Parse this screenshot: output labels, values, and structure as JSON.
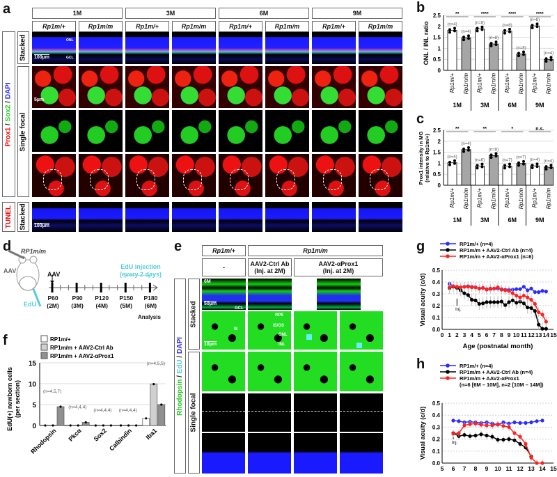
{
  "panels": {
    "a": "a",
    "b": "b",
    "c": "c",
    "d": "d",
    "e": "e",
    "f": "f",
    "g": "g",
    "h": "h"
  },
  "panel_a": {
    "ages": [
      "1M",
      "3M",
      "6M",
      "9M"
    ],
    "genotypes": [
      "Rp1m/+",
      "Rp1m/m"
    ],
    "stain_label": {
      "red": "Prox1",
      "sep1": " / ",
      "green": "Sox2",
      "sep2": " / ",
      "blue": "DAPI"
    },
    "row_labels": {
      "stacked": "Stacked",
      "single_focal": "Single focal",
      "tunel_stacked": "Stacked"
    },
    "tunel_label": "TUNEL",
    "scale_bars": {
      "stacked": "100µm",
      "focal": "5µm",
      "tunel": "100µm"
    },
    "layer_labels": {
      "onl": "ONL",
      "gcl": "GCL"
    }
  },
  "panel_d": {
    "mouse_label": "RP1m/m",
    "aav": "AAV",
    "edu": "EdU",
    "timeline_aav": "AAV",
    "edu_injection": "EdU injection\n(every 2 days)",
    "timepoints": [
      {
        "p": "P60",
        "m": "(2M)"
      },
      {
        "p": "P90",
        "m": "(3M)"
      },
      {
        "p": "P120",
        "m": "(4M)"
      },
      {
        "p": "P150",
        "m": "(5M)"
      },
      {
        "p": "P180",
        "m": "(6M)"
      }
    ],
    "analysis": "Analysis"
  },
  "panel_e": {
    "genotype_headers": [
      "Rp1m/+",
      "Rp1m/m"
    ],
    "treatment_headers": [
      "-",
      "AAV2-Ctrl Ab\n(Inj. at 2M)",
      "AAV2-αProx1\n(Inj. at 2M)"
    ],
    "stain_label": {
      "green": "Rhodopsin",
      "sep1": " / ",
      "cyan": "EdU",
      "sep2": " / ",
      "blue": "DAPI"
    },
    "row_labels": {
      "stacked": "Stacked",
      "single_focal": "Single focal"
    },
    "age_tag": "6M",
    "scale_bars": {
      "stacked": "50µm",
      "focal": "10µm"
    },
    "layer_labels": [
      "RPE",
      "IS/OS",
      "ONL",
      "INL",
      "IS",
      "GCL"
    ]
  },
  "colors": {
    "blue": "#2a2aff",
    "black": "#000000",
    "red": "#ff2020",
    "edu": "#66e0f0",
    "bar_open": "#ffffff",
    "bar_gray": "#a6a6a6",
    "bar_light": "#d0d0d0",
    "bar_dark": "#909090"
  },
  "chart_data": [
    {
      "id": "b",
      "type": "bar",
      "ylabel": "ONL / INL ratio",
      "ylim": [
        0,
        2.5
      ],
      "yticks": [
        "0",
        "0.5",
        "1",
        "1.5",
        "2",
        "2.5"
      ],
      "groups": [
        "1M",
        "3M",
        "6M",
        "9M"
      ],
      "bar_labels": [
        "Rp1m/+",
        "Rp1m/m"
      ],
      "values": [
        [
          1.82,
          1.48
        ],
        [
          1.88,
          1.2
        ],
        [
          1.78,
          0.75
        ],
        [
          2.02,
          0.5
        ]
      ],
      "n": [
        [
          "(n=4)",
          "(n=4)"
        ],
        [
          "(n=8)",
          "(n=8)"
        ],
        [
          "(n=8)",
          "(n=8)"
        ],
        [
          "(n=8)",
          "(n=4)"
        ]
      ],
      "significance": [
        "**",
        "****",
        "****",
        "****"
      ]
    },
    {
      "id": "c",
      "type": "bar",
      "ylabel": "Prox1 intensity in MG",
      "ylabel2": "(relative to Rp1m/+)",
      "ylim": [
        0,
        2.5
      ],
      "yticks": [
        "0",
        "0.5",
        "1",
        "1.5",
        "2",
        "2.5"
      ],
      "groups": [
        "1M",
        "3M",
        "6M",
        "9M"
      ],
      "bar_labels": [
        "Rp1m/+",
        "Rp1m/m"
      ],
      "values": [
        [
          1.02,
          1.62
        ],
        [
          0.87,
          1.35
        ],
        [
          0.87,
          0.99
        ],
        [
          0.88,
          0.82
        ]
      ],
      "n": [
        [
          "(n=4)",
          "(n=4)"
        ],
        [
          "(n=6)",
          "(n=8)"
        ],
        [
          "(n=7)",
          "(n=7)"
        ],
        [
          "(n=4)",
          "(n=4)"
        ]
      ],
      "significance": [
        "**",
        "**",
        "*",
        "n.s."
      ]
    },
    {
      "id": "f",
      "type": "bar",
      "ylabel": "EdU(+) newborn cells",
      "ylabel2": "(per section)",
      "ylim": [
        0,
        15
      ],
      "yticks": [
        "0",
        "5",
        "10",
        "15"
      ],
      "categories": [
        "Rhodopsin",
        "Pkcα",
        "Sox2",
        "Calbindin",
        "Iba1"
      ],
      "legend": [
        "RP1m/+",
        "RP1m/m + AAV2-Ctrl Ab",
        "RP1m/m + AAV2-αProx1"
      ],
      "series": [
        {
          "name": "RP1m/+",
          "values": [
            0,
            0,
            0,
            0,
            1.7
          ]
        },
        {
          "name": "RP1m/m + AAV2-Ctrl Ab",
          "values": [
            0,
            0,
            0,
            0,
            9.9
          ]
        },
        {
          "name": "RP1m/m + AAV2-αProx1",
          "values": [
            4.5,
            0.75,
            0,
            0,
            5.0
          ]
        }
      ],
      "n": [
        "(n=4,5,7)",
        "(n=4,4,4)",
        "(n=4,4,4)",
        "(n=4,4,4)",
        "(n=4,5,5)"
      ]
    },
    {
      "id": "g",
      "type": "line",
      "ylabel": "Visual acuity (c/d)",
      "xlabel": "Age (postnatal month)",
      "xlim": [
        0,
        15
      ],
      "ylim": [
        0,
        0.5
      ],
      "xticks": [
        "0",
        "1",
        "2",
        "3",
        "4",
        "5",
        "6",
        "7",
        "8",
        "9",
        "10",
        "11",
        "12",
        "13",
        "14",
        "15"
      ],
      "yticks": [
        "0.0",
        "0.1",
        "0.2",
        "0.3",
        "0.4",
        "0.5"
      ],
      "annotation": "Inj.",
      "annotation_x": 2,
      "x": [
        1,
        1.5,
        2,
        2.5,
        3,
        3.5,
        4,
        4.5,
        5,
        5.5,
        6,
        6.5,
        7,
        7.5,
        8,
        8.5,
        9,
        9.5,
        10,
        10.5,
        11,
        11.5,
        12,
        12.5,
        13,
        13.5,
        14
      ],
      "series": [
        {
          "name": "RP1m/+ (n=4)",
          "color": "blue",
          "values": [
            0.385,
            0.365,
            0.36,
            0.355,
            0.36,
            0.365,
            0.36,
            0.355,
            0.345,
            0.35,
            0.34,
            0.34,
            0.345,
            0.345,
            0.34,
            0.335,
            0.335,
            0.335,
            0.34,
            0.34,
            0.36,
            0.33,
            0.345,
            0.315,
            0.315,
            0.325,
            0.32
          ],
          "err": 0.02
        },
        {
          "name": "RP1m/m + AAV2-Ctrl Ab (n=4)",
          "color": "black",
          "values": [
            0.35,
            0.36,
            0.35,
            0.33,
            0.305,
            0.29,
            0.25,
            0.245,
            0.215,
            0.22,
            0.23,
            0.23,
            0.23,
            0.23,
            0.235,
            0.205,
            0.23,
            0.245,
            0.225,
            0.235,
            0.22,
            0.185,
            0.18,
            0.155,
            0.04,
            0.005,
            0.005
          ],
          "err": 0.05
        },
        {
          "name": "RP1m/m + AAV2-αProx1 (n=6)",
          "color": "red",
          "values": [
            0.355,
            0.365,
            0.36,
            0.355,
            0.36,
            0.36,
            0.355,
            0.355,
            0.345,
            0.35,
            0.335,
            0.345,
            0.345,
            0.355,
            0.335,
            0.33,
            0.325,
            0.305,
            0.285,
            0.27,
            0.285,
            0.27,
            0.25,
            0.215,
            0.145,
            0.125,
            0.065
          ],
          "err": 0.04
        }
      ]
    },
    {
      "id": "h",
      "type": "line",
      "ylabel": "Visual acuity (c/d)",
      "xlabel": "Age (postnatal month)",
      "xlim": [
        5,
        15
      ],
      "ylim": [
        0,
        0.5
      ],
      "xticks": [
        "5",
        "6",
        "7",
        "8",
        "9",
        "10",
        "11",
        "12",
        "13",
        "14",
        "15"
      ],
      "yticks": [
        "0.0",
        "0.1",
        "0.2",
        "0.3",
        "0.4",
        "0.5"
      ],
      "annotation": "Inj.",
      "annotation_x": 6,
      "legend_note": "(n=6 [6M – 10M], n=2 [10M – 14M])",
      "x": [
        6,
        6.5,
        7,
        7.5,
        8,
        8.5,
        9,
        9.5,
        10,
        10.5,
        11,
        11.5,
        12,
        12.5,
        13,
        13.5,
        14
      ],
      "series": [
        {
          "name": "RP1m/+ (n=4)",
          "color": "blue",
          "values": [
            0.355,
            0.35,
            0.34,
            0.345,
            0.34,
            0.335,
            0.34,
            0.33,
            0.32,
            0.34,
            0.33,
            0.34,
            0.335,
            0.335,
            0.34,
            0.35,
            0.355
          ],
          "err": 0.02
        },
        {
          "name": "RP1m/m + AAV2-Ctrl Ab (n=4)",
          "color": "black",
          "values": [
            0.25,
            0.225,
            0.235,
            0.225,
            0.23,
            0.24,
            0.23,
            0.22,
            0.195,
            0.195,
            0.2,
            0.19,
            0.16,
            0.13,
            0.055,
            null,
            null
          ],
          "err": 0.03
        },
        {
          "name": "RP1m/m + AAV2-αProx1",
          "color": "red",
          "values": [
            0.245,
            0.25,
            0.315,
            0.325,
            0.33,
            0.32,
            0.315,
            0.315,
            0.325,
            0.31,
            0.3,
            0.25,
            0.22,
            0.16,
            0.045,
            0,
            0
          ],
          "err": 0.03
        }
      ]
    }
  ]
}
